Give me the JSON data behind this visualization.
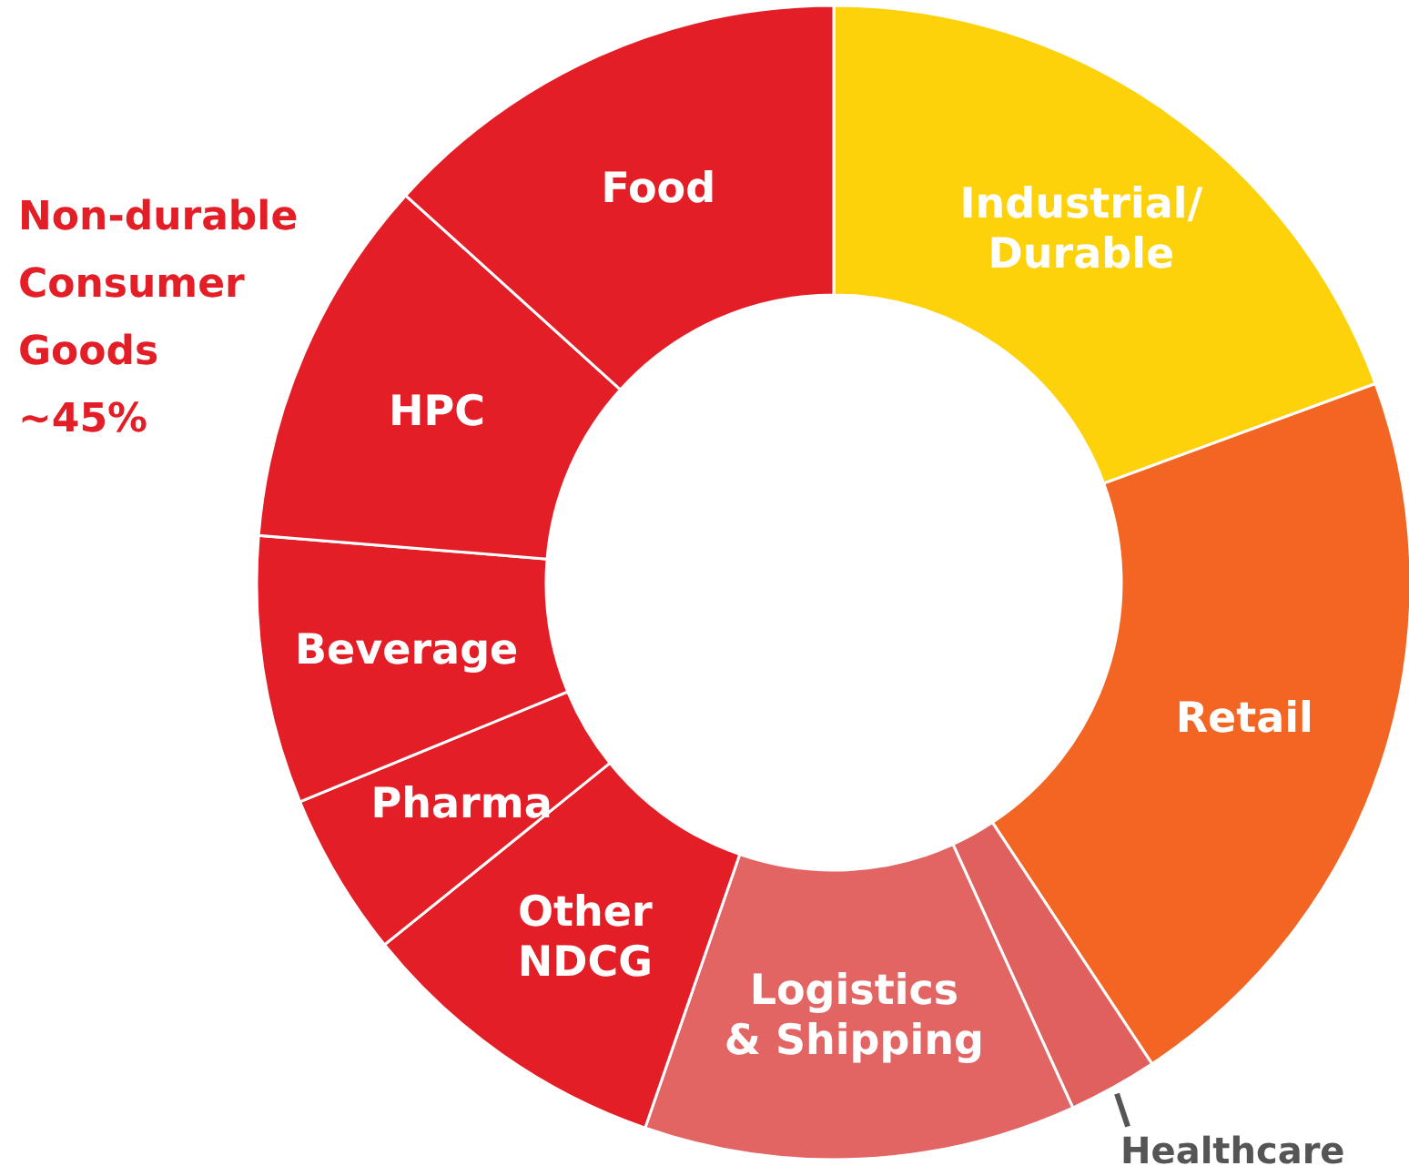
{
  "chart_data": {
    "type": "donut",
    "categories": [
      "Industrial/Durable",
      "Retail",
      "Healthcare",
      "Logistics & Shipping",
      "Other NDCG",
      "Pharma",
      "Beverage",
      "HPC",
      "Food"
    ],
    "values": [
      19.4,
      21.3,
      2.5,
      12.1,
      8.9,
      4.6,
      7.5,
      10.4,
      13.3
    ],
    "colors": [
      "#fdd20a",
      "#f26522",
      "#e0605e",
      "#e26564",
      "#e31e26",
      "#e31e26",
      "#e31e26",
      "#e31e26",
      "#e31e26"
    ],
    "annotations": [
      "Non-durable Consumer Goods ~45%"
    ]
  }
}
